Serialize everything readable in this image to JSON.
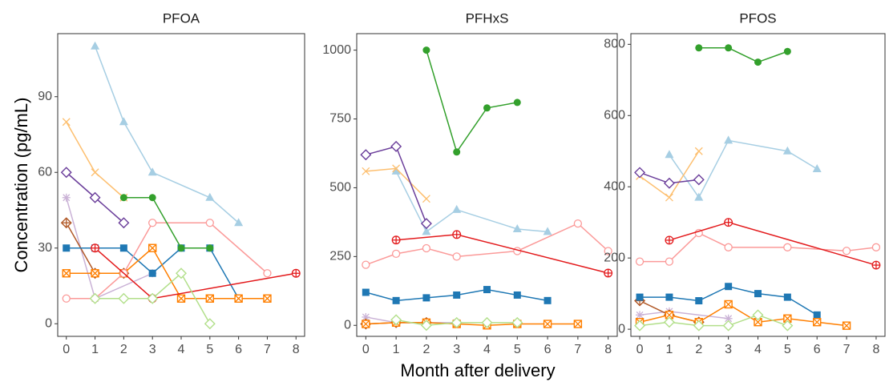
{
  "ylabel": "Concentration (pg/mL)",
  "xlabel": "Month after delivery",
  "chart_data": [
    {
      "type": "line",
      "title": "PFOA",
      "xlim": [
        -0.3,
        8.3
      ],
      "xticks": [
        0,
        1,
        2,
        3,
        4,
        5,
        6,
        7,
        8
      ],
      "ylim": [
        -5,
        115
      ],
      "yticks": [
        0,
        30,
        60,
        90
      ],
      "series": [
        {
          "color": "#a6cee3",
          "marker": "triangle",
          "x": [
            1,
            2,
            3,
            5,
            6
          ],
          "values": [
            110,
            80,
            60,
            50,
            40
          ]
        },
        {
          "color": "#fdbf6f",
          "marker": "x",
          "x": [
            0,
            1,
            2
          ],
          "values": [
            80,
            60,
            50
          ]
        },
        {
          "color": "#6a3d9a",
          "marker": "diamond-open",
          "x": [
            0,
            1,
            2
          ],
          "values": [
            60,
            50,
            40
          ]
        },
        {
          "color": "#cab2d6",
          "marker": "asterisk",
          "x": [
            0,
            1,
            3
          ],
          "values": [
            50,
            10,
            20
          ]
        },
        {
          "color": "#b15928",
          "marker": "diamond-plus",
          "x": [
            0,
            1,
            2
          ],
          "values": [
            40,
            20,
            20
          ]
        },
        {
          "color": "#1f78b4",
          "marker": "square",
          "x": [
            0,
            1,
            2,
            3,
            4,
            5,
            6
          ],
          "values": [
            30,
            30,
            30,
            20,
            30,
            30,
            10
          ]
        },
        {
          "color": "#ff7f00",
          "marker": "square-x",
          "x": [
            0,
            1,
            2,
            3,
            4,
            5,
            6,
            7
          ],
          "values": [
            20,
            20,
            20,
            30,
            10,
            10,
            10,
            10
          ]
        },
        {
          "color": "#fb9a99",
          "marker": "circle-open",
          "x": [
            0,
            1,
            2,
            3,
            5,
            7
          ],
          "values": [
            10,
            10,
            20,
            40,
            40,
            20
          ]
        },
        {
          "color": "#e31a1c",
          "marker": "circle-plus",
          "x": [
            1,
            3,
            8
          ],
          "values": [
            30,
            10,
            20
          ]
        },
        {
          "color": "#33a02c",
          "marker": "circle",
          "x": [
            2,
            3,
            4,
            5
          ],
          "values": [
            50,
            50,
            30,
            30
          ]
        },
        {
          "color": "#b2df8a",
          "marker": "diamond-open",
          "x": [
            1,
            2,
            3,
            4,
            5
          ],
          "values": [
            10,
            10,
            10,
            20,
            0
          ]
        }
      ]
    },
    {
      "type": "line",
      "title": "PFHxS",
      "xlim": [
        -0.3,
        8.3
      ],
      "xticks": [
        0,
        1,
        2,
        3,
        4,
        5,
        6,
        7,
        8
      ],
      "ylim": [
        -40,
        1060
      ],
      "yticks": [
        0,
        250,
        500,
        750,
        1000
      ],
      "series": [
        {
          "color": "#a6cee3",
          "marker": "triangle",
          "x": [
            1,
            2,
            3,
            5,
            6
          ],
          "values": [
            560,
            340,
            420,
            350,
            340
          ]
        },
        {
          "color": "#fdbf6f",
          "marker": "x",
          "x": [
            0,
            1,
            2
          ],
          "values": [
            560,
            570,
            460
          ]
        },
        {
          "color": "#6a3d9a",
          "marker": "diamond-open",
          "x": [
            0,
            1,
            2
          ],
          "values": [
            620,
            650,
            370
          ]
        },
        {
          "color": "#cab2d6",
          "marker": "asterisk",
          "x": [
            0,
            1,
            3
          ],
          "values": [
            30,
            10,
            10
          ]
        },
        {
          "color": "#b15928",
          "marker": "diamond-plus",
          "x": [
            0,
            1,
            2
          ],
          "values": [
            5,
            10,
            10
          ]
        },
        {
          "color": "#1f78b4",
          "marker": "square",
          "x": [
            0,
            1,
            2,
            3,
            4,
            5,
            6
          ],
          "values": [
            120,
            90,
            100,
            110,
            130,
            110,
            90
          ]
        },
        {
          "color": "#ff7f00",
          "marker": "square-x",
          "x": [
            0,
            1,
            2,
            3,
            4,
            5,
            6,
            7
          ],
          "values": [
            5,
            10,
            10,
            5,
            0,
            5,
            5,
            5
          ]
        },
        {
          "color": "#fb9a99",
          "marker": "circle-open",
          "x": [
            0,
            1,
            2,
            3,
            5,
            7,
            8
          ],
          "values": [
            220,
            260,
            280,
            250,
            270,
            370,
            270
          ]
        },
        {
          "color": "#e31a1c",
          "marker": "circle-plus",
          "x": [
            1,
            3,
            8
          ],
          "values": [
            310,
            330,
            190
          ]
        },
        {
          "color": "#33a02c",
          "marker": "circle",
          "x": [
            2,
            3,
            4,
            5
          ],
          "values": [
            1000,
            630,
            790,
            810
          ]
        },
        {
          "color": "#b2df8a",
          "marker": "diamond-open",
          "x": [
            1,
            2,
            3,
            4,
            5
          ],
          "values": [
            20,
            0,
            10,
            10,
            10
          ]
        }
      ]
    },
    {
      "type": "line",
      "title": "PFOS",
      "xlim": [
        -0.3,
        8.3
      ],
      "xticks": [
        0,
        1,
        2,
        3,
        4,
        5,
        6,
        7,
        8
      ],
      "ylim": [
        -20,
        830
      ],
      "yticks": [
        0,
        200,
        400,
        600,
        800
      ],
      "series": [
        {
          "color": "#a6cee3",
          "marker": "triangle",
          "x": [
            1,
            2,
            3,
            5,
            6
          ],
          "values": [
            490,
            370,
            530,
            500,
            450
          ]
        },
        {
          "color": "#fdbf6f",
          "marker": "x",
          "x": [
            0,
            1,
            2
          ],
          "values": [
            430,
            370,
            500
          ]
        },
        {
          "color": "#6a3d9a",
          "marker": "diamond-open",
          "x": [
            0,
            1,
            2
          ],
          "values": [
            440,
            410,
            420
          ]
        },
        {
          "color": "#cab2d6",
          "marker": "asterisk",
          "x": [
            0,
            1,
            3
          ],
          "values": [
            40,
            50,
            30
          ]
        },
        {
          "color": "#b15928",
          "marker": "diamond-plus",
          "x": [
            0,
            1,
            2
          ],
          "values": [
            80,
            40,
            20
          ]
        },
        {
          "color": "#1f78b4",
          "marker": "square",
          "x": [
            0,
            1,
            2,
            3,
            4,
            5,
            6
          ],
          "values": [
            90,
            90,
            80,
            120,
            100,
            90,
            40
          ]
        },
        {
          "color": "#ff7f00",
          "marker": "square-x",
          "x": [
            0,
            1,
            2,
            3,
            4,
            5,
            6,
            7
          ],
          "values": [
            20,
            40,
            20,
            70,
            20,
            30,
            20,
            10
          ]
        },
        {
          "color": "#fb9a99",
          "marker": "circle-open",
          "x": [
            0,
            1,
            2,
            3,
            5,
            7,
            8
          ],
          "values": [
            190,
            190,
            270,
            230,
            230,
            220,
            230
          ]
        },
        {
          "color": "#e31a1c",
          "marker": "circle-plus",
          "x": [
            1,
            3,
            8
          ],
          "values": [
            250,
            300,
            180
          ]
        },
        {
          "color": "#33a02c",
          "marker": "circle",
          "x": [
            2,
            3,
            4,
            5
          ],
          "values": [
            790,
            790,
            750,
            780
          ]
        },
        {
          "color": "#b2df8a",
          "marker": "diamond-open",
          "x": [
            0,
            1,
            2,
            3,
            4,
            5
          ],
          "values": [
            10,
            20,
            10,
            10,
            40,
            10
          ]
        }
      ]
    }
  ]
}
